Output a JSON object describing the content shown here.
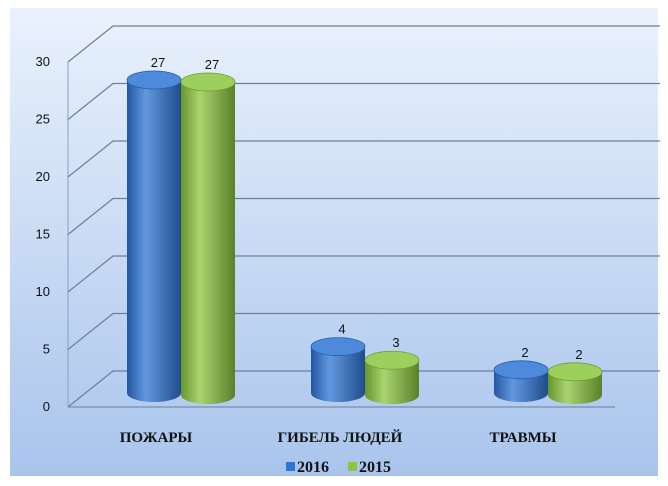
{
  "chart_data": {
    "type": "bar",
    "title": "",
    "xlabel": "",
    "ylabel": "",
    "categories": [
      "ПОЖАРЫ",
      "ГИБЕЛЬ ЛЮДЕЙ",
      "ТРАВМЫ"
    ],
    "series": [
      {
        "name": "2016",
        "values": [
          27,
          4,
          2
        ],
        "color": "#2e75d6"
      },
      {
        "name": "2015",
        "values": [
          27,
          3,
          2
        ],
        "color": "#8cc63f"
      }
    ],
    "ylim": [
      0,
      30
    ],
    "yticks": [
      0,
      5,
      10,
      15,
      20,
      25,
      30
    ],
    "grid": true,
    "legend": "bottom",
    "background_top": "#eaf2fc",
    "background_bottom": "#a9c4ec"
  }
}
